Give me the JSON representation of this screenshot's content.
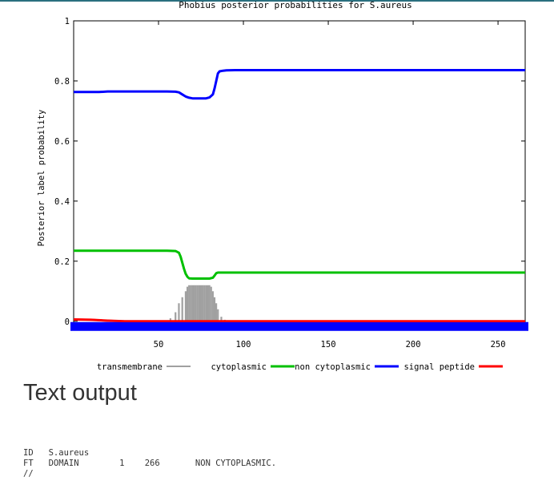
{
  "chart_data": {
    "type": "line",
    "title": "Phobius posterior probabilities for S.aureus",
    "xlabel": "",
    "ylabel": "Posterior label probability",
    "xlim": [
      0,
      266
    ],
    "ylim": [
      0,
      1
    ],
    "x_ticks": [
      50,
      100,
      150,
      200,
      250
    ],
    "y_ticks": [
      0,
      0.2,
      0.4,
      0.6,
      0.8,
      1
    ],
    "y_tick_labels": [
      "0",
      "0.2",
      "0.4",
      "0.6",
      "0.8",
      "1"
    ],
    "legend_position": "bottom",
    "series": [
      {
        "name": "transmembrane",
        "color": "#a0a0a0",
        "style": "impulses",
        "x": [
          57,
          60,
          62,
          64,
          66,
          67,
          68,
          69,
          70,
          71,
          72,
          73,
          74,
          75,
          76,
          77,
          78,
          79,
          80,
          81,
          82,
          83,
          84,
          85,
          87,
          89
        ],
        "y": [
          0.01,
          0.03,
          0.06,
          0.08,
          0.1,
          0.115,
          0.12,
          0.12,
          0.12,
          0.12,
          0.12,
          0.12,
          0.12,
          0.12,
          0.12,
          0.12,
          0.12,
          0.12,
          0.12,
          0.115,
          0.1,
          0.08,
          0.06,
          0.04,
          0.015,
          0.005
        ]
      },
      {
        "name": "cytoplasmic",
        "color": "#00c000",
        "style": "line",
        "x": [
          0,
          20,
          40,
          55,
          60,
          62,
          63,
          64,
          65,
          66,
          67,
          68,
          70,
          75,
          80,
          82,
          83,
          84,
          85,
          90,
          100,
          150,
          200,
          266
        ],
        "y": [
          0.235,
          0.235,
          0.235,
          0.235,
          0.234,
          0.228,
          0.215,
          0.195,
          0.175,
          0.158,
          0.148,
          0.143,
          0.142,
          0.142,
          0.142,
          0.145,
          0.152,
          0.16,
          0.162,
          0.162,
          0.162,
          0.162,
          0.162,
          0.162
        ]
      },
      {
        "name": "non cytoplasmic",
        "color": "#0000ff",
        "style": "line",
        "x": [
          0,
          15,
          20,
          40,
          55,
          60,
          62,
          64,
          66,
          68,
          70,
          78,
          80,
          82,
          83,
          84,
          85,
          86,
          88,
          90,
          95,
          100,
          150,
          200,
          266
        ],
        "y": [
          0.763,
          0.763,
          0.765,
          0.765,
          0.765,
          0.764,
          0.762,
          0.755,
          0.748,
          0.744,
          0.742,
          0.742,
          0.745,
          0.755,
          0.775,
          0.8,
          0.825,
          0.832,
          0.834,
          0.835,
          0.836,
          0.836,
          0.836,
          0.836,
          0.836
        ]
      },
      {
        "name": "signal peptide",
        "color": "#ff0000",
        "style": "line",
        "x": [
          0,
          10,
          20,
          30,
          266
        ],
        "y": [
          0.006,
          0.005,
          0.002,
          0.0,
          0.0
        ]
      }
    ]
  },
  "text_output": {
    "heading": "Text output",
    "lines": [
      "ID   S.aureus",
      "FT   DOMAIN        1    266       NON CYTOPLASMIC.",
      "//"
    ]
  },
  "colors": {
    "heading_text": "#333333",
    "top_border": "#2a6f7f",
    "axis": "#000000",
    "grid": "#000000"
  }
}
